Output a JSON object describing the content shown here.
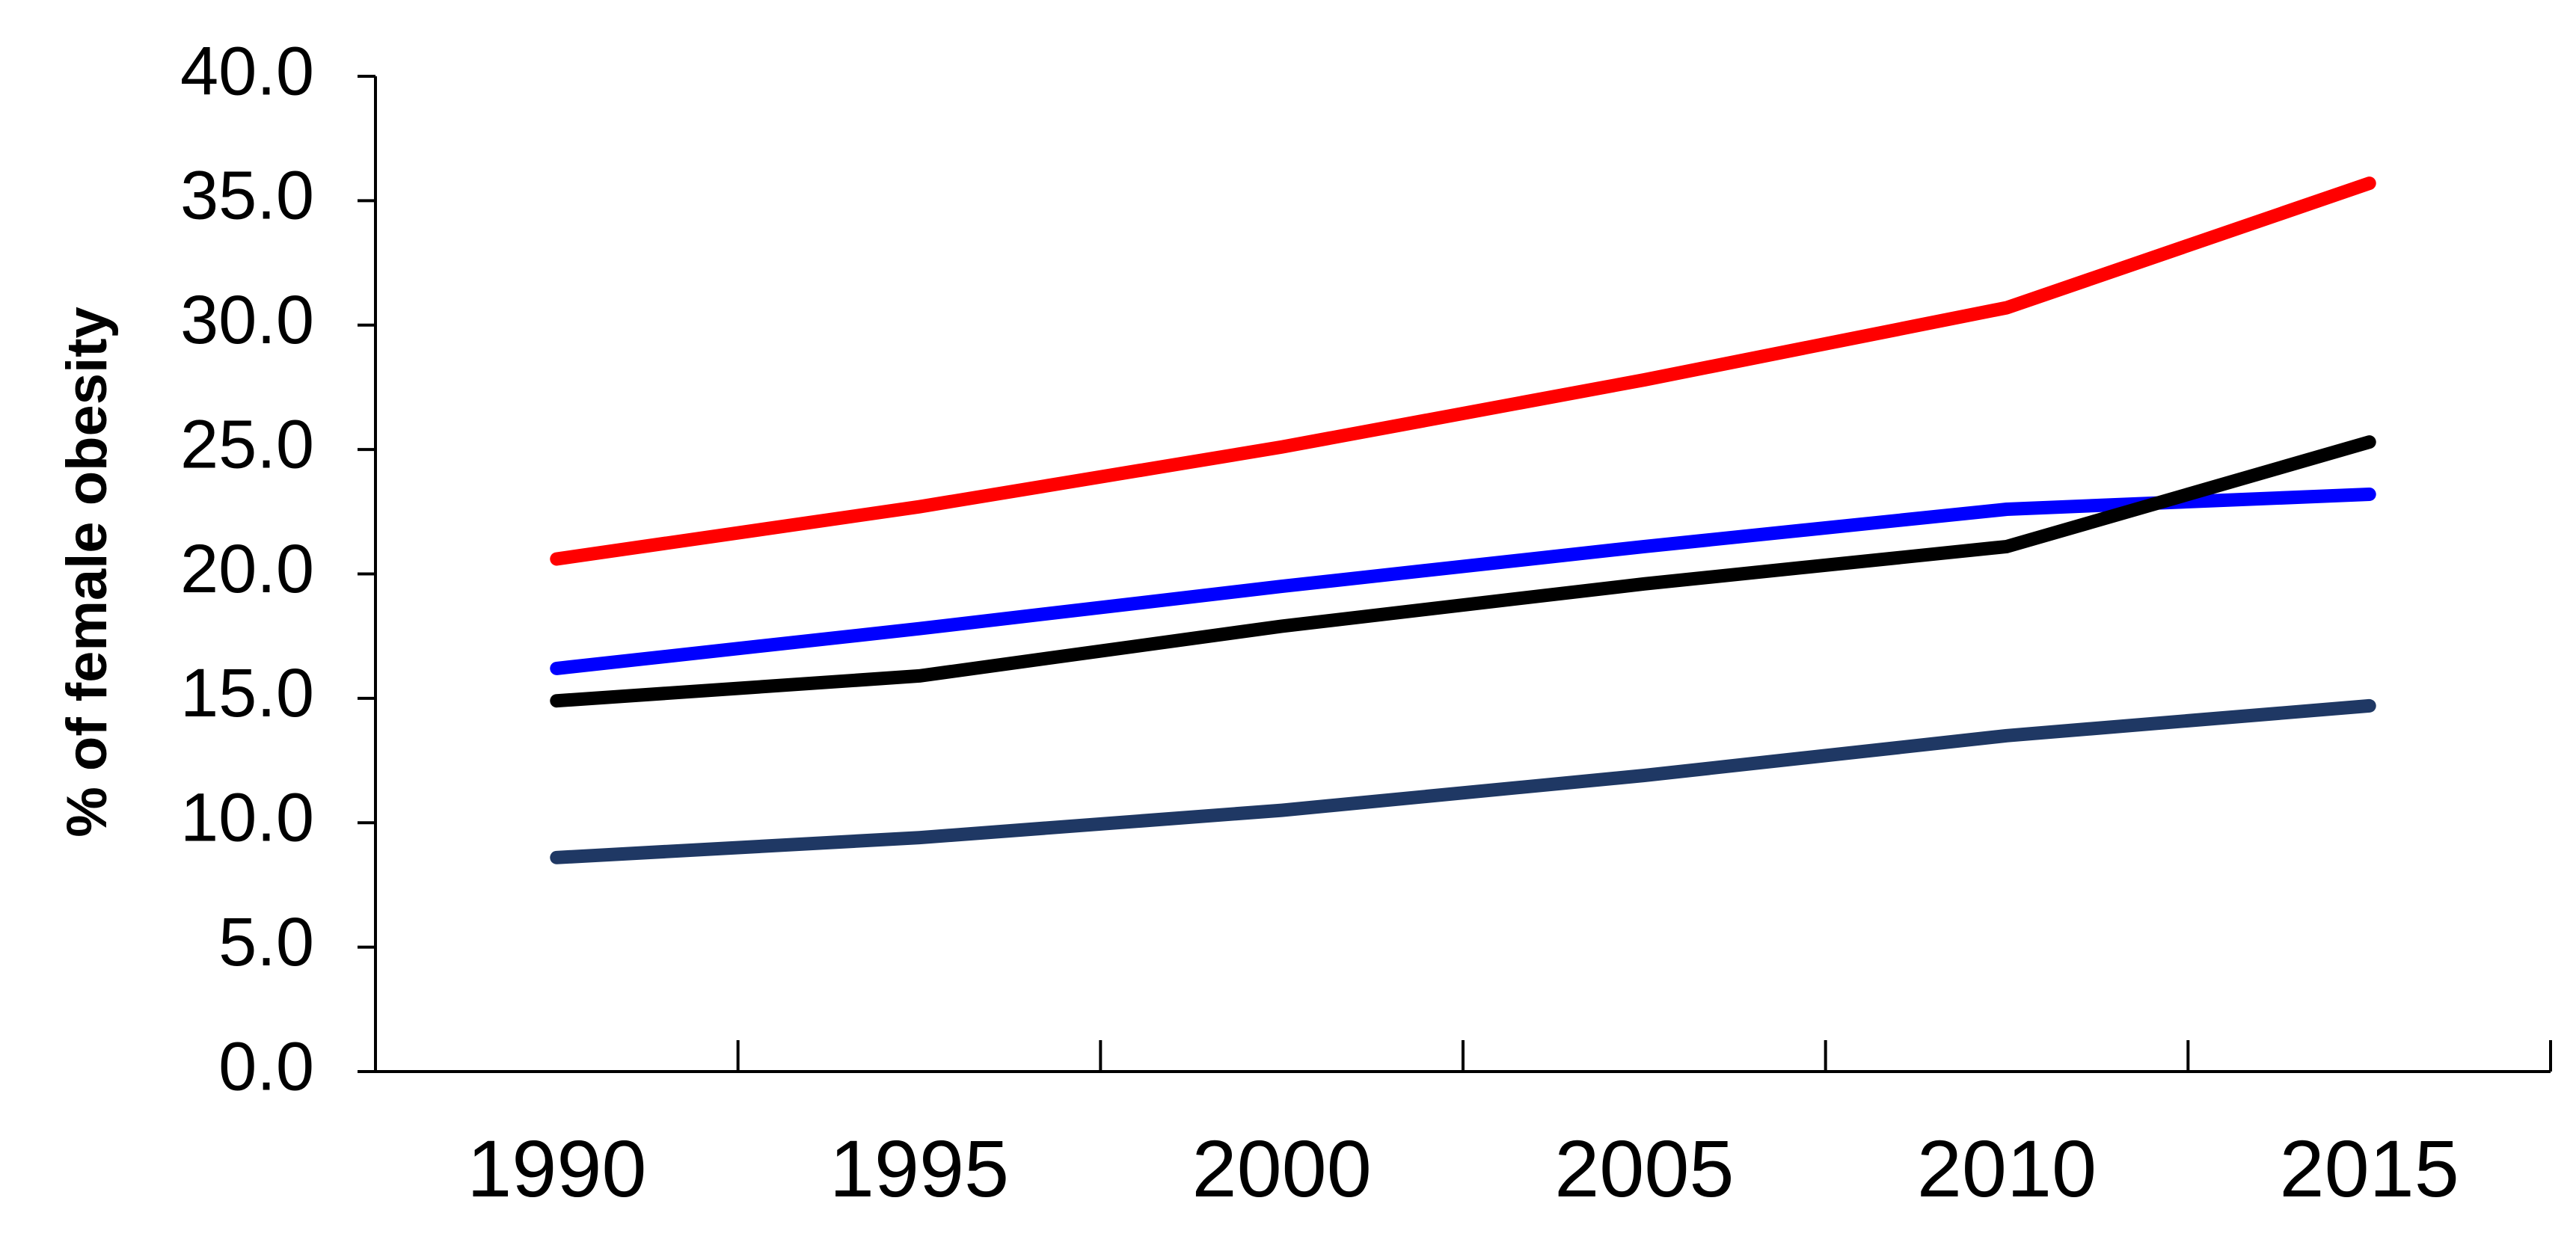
{
  "chart_data": {
    "type": "line",
    "title": "",
    "xlabel": "",
    "ylabel": "% of female obesity",
    "x": [
      1990,
      1995,
      2000,
      2005,
      2010,
      2015
    ],
    "xlim": [
      1987.5,
      2017.5
    ],
    "ylim": [
      0,
      40
    ],
    "y_ticks": [
      "0.0",
      "5.0",
      "10.0",
      "15.0",
      "20.0",
      "25.0",
      "30.0",
      "35.0",
      "40.0"
    ],
    "x_tick_labels": [
      "1990",
      "1995",
      "2000",
      "2005",
      "2010",
      "2015"
    ],
    "grid": false,
    "legend": "none",
    "series": [
      {
        "color": "#ff0000",
        "values": [
          20.6,
          22.7,
          25.1,
          27.8,
          30.7,
          35.7
        ]
      },
      {
        "color": "#0000ff",
        "values": [
          16.2,
          17.8,
          19.5,
          21.1,
          22.6,
          23.2
        ]
      },
      {
        "color": "#000000",
        "values": [
          14.9,
          15.9,
          17.9,
          19.6,
          21.1,
          25.3
        ]
      },
      {
        "color": "#1f3864",
        "values": [
          8.6,
          9.4,
          10.5,
          11.9,
          13.5,
          14.7
        ]
      }
    ]
  }
}
